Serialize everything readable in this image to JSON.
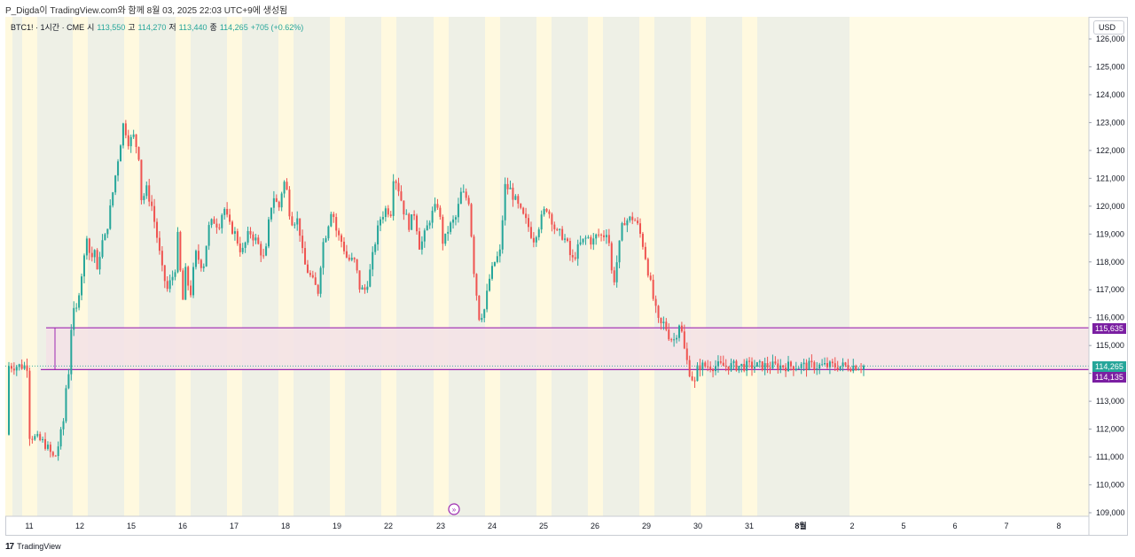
{
  "header": {
    "publish_line": "P_Digda이 TradingView.com와 함께 8월 03, 2025 22:03 UTC+9에 생성됨"
  },
  "legend": {
    "symbol": "BTC1! · 1시간 · CME",
    "open_label": "시",
    "open": "113,550",
    "high_label": "고",
    "high": "114,270",
    "low_label": "저",
    "low": "113,440",
    "close_label": "종",
    "close": "114,265",
    "change": "+705 (+0.62%)"
  },
  "price_axis": {
    "currency": "USD"
  },
  "price_tags": {
    "zone_top": "115,635",
    "last_price": "114,265",
    "zone_bottom": "114,135"
  },
  "footer": {
    "brand": "TradingView",
    "logo": "17"
  },
  "colors": {
    "up": "#26a69a",
    "down": "#ef5350",
    "band_yellow": "#fff9df",
    "band_gray": "#eef0e6",
    "future": "#fffbe6",
    "zone_line": "#9c27b0",
    "zone_fill": "#f3e2e6",
    "last_price_bg": "#26a69a",
    "zone_tag_bg": "#7b1fa2"
  },
  "chart_data": {
    "type": "candlestick",
    "symbol": "BTC1!",
    "timeframe": "1시간",
    "exchange": "CME",
    "ylim": [
      109000,
      126000
    ],
    "yticks": [
      "109,000",
      "110,000",
      "111,000",
      "112,000",
      "113,000",
      "114,000",
      "115,000",
      "116,000",
      "117,000",
      "118,000",
      "119,000",
      "120,000",
      "121,000",
      "122,000",
      "123,000",
      "124,000",
      "125,000",
      "126,000"
    ],
    "x_ticks": [
      "11",
      "12",
      "15",
      "16",
      "17",
      "18",
      "19",
      "22",
      "23",
      "24",
      "25",
      "26",
      "29",
      "30",
      "31",
      "8월",
      "2",
      "5",
      "6",
      "7",
      "8"
    ],
    "path": [
      [
        0,
        111800
      ],
      [
        0.3,
        111500
      ],
      [
        0.5,
        110900
      ],
      [
        0.6,
        111600
      ],
      [
        0.7,
        112500
      ],
      [
        0.75,
        114300
      ],
      [
        0.8,
        113900
      ],
      [
        0.85,
        116800
      ],
      [
        0.9,
        115800
      ],
      [
        1.0,
        117200
      ],
      [
        1.1,
        118300
      ],
      [
        1.15,
        119300
      ],
      [
        1.2,
        118000
      ],
      [
        1.3,
        118500
      ],
      [
        1.35,
        117300
      ],
      [
        1.4,
        118600
      ],
      [
        1.5,
        118900
      ],
      [
        1.6,
        120000
      ],
      [
        1.75,
        121800
      ],
      [
        1.85,
        123000
      ],
      [
        1.95,
        122300
      ],
      [
        2.05,
        122500
      ],
      [
        2.15,
        121800
      ],
      [
        2.2,
        120200
      ],
      [
        2.3,
        120600
      ],
      [
        2.4,
        120000
      ],
      [
        2.5,
        118900
      ],
      [
        2.6,
        117700
      ],
      [
        2.7,
        117000
      ],
      [
        2.85,
        117700
      ],
      [
        2.9,
        119000
      ],
      [
        3.0,
        116500
      ],
      [
        3.05,
        117700
      ],
      [
        3.15,
        116800
      ],
      [
        3.25,
        118300
      ],
      [
        3.4,
        117800
      ],
      [
        3.5,
        119200
      ],
      [
        3.6,
        119500
      ],
      [
        3.7,
        119300
      ],
      [
        3.8,
        120000
      ],
      [
        3.9,
        119300
      ],
      [
        4.0,
        119100
      ],
      [
        4.15,
        118300
      ],
      [
        4.3,
        119100
      ],
      [
        4.45,
        118700
      ],
      [
        4.6,
        118000
      ],
      [
        4.7,
        119900
      ],
      [
        4.8,
        120500
      ],
      [
        4.85,
        119700
      ],
      [
        4.95,
        120800
      ],
      [
        5.0,
        120900
      ],
      [
        5.1,
        119500
      ],
      [
        5.25,
        119500
      ],
      [
        5.35,
        118000
      ],
      [
        5.45,
        117600
      ],
      [
        5.55,
        117200
      ],
      [
        5.65,
        116900
      ],
      [
        5.7,
        118500
      ],
      [
        5.8,
        119100
      ],
      [
        5.9,
        120000
      ],
      [
        6.0,
        119000
      ],
      [
        6.1,
        118700
      ],
      [
        6.2,
        118100
      ],
      [
        6.35,
        118000
      ],
      [
        6.45,
        117000
      ],
      [
        6.55,
        117000
      ],
      [
        6.65,
        117700
      ],
      [
        6.75,
        118800
      ],
      [
        6.85,
        119600
      ],
      [
        6.95,
        119900
      ],
      [
        7.05,
        119800
      ],
      [
        7.1,
        121200
      ],
      [
        7.2,
        120600
      ],
      [
        7.3,
        119800
      ],
      [
        7.4,
        119300
      ],
      [
        7.5,
        119800
      ],
      [
        7.6,
        118500
      ],
      [
        7.7,
        119000
      ],
      [
        7.8,
        119600
      ],
      [
        7.95,
        120100
      ],
      [
        8.05,
        118600
      ],
      [
        8.15,
        119200
      ],
      [
        8.3,
        119600
      ],
      [
        8.4,
        120500
      ],
      [
        8.55,
        120200
      ],
      [
        8.65,
        117600
      ],
      [
        8.75,
        116000
      ],
      [
        8.85,
        116300
      ],
      [
        8.95,
        117400
      ],
      [
        9.05,
        118000
      ],
      [
        9.15,
        118300
      ],
      [
        9.25,
        120700
      ],
      [
        9.35,
        120600
      ],
      [
        9.45,
        120200
      ],
      [
        9.55,
        119800
      ],
      [
        9.7,
        119300
      ],
      [
        9.8,
        118800
      ],
      [
        9.95,
        119500
      ],
      [
        10.05,
        120000
      ],
      [
        10.15,
        119600
      ],
      [
        10.25,
        119000
      ],
      [
        10.35,
        119000
      ],
      [
        10.45,
        118700
      ],
      [
        10.55,
        118000
      ],
      [
        10.7,
        118600
      ],
      [
        10.85,
        118900
      ],
      [
        10.95,
        118700
      ],
      [
        11.05,
        119000
      ],
      [
        11.15,
        118900
      ],
      [
        11.25,
        119200
      ],
      [
        11.35,
        117100
      ],
      [
        11.45,
        118300
      ],
      [
        11.55,
        119500
      ],
      [
        11.65,
        119500
      ],
      [
        11.75,
        119600
      ],
      [
        11.85,
        119200
      ],
      [
        11.95,
        118500
      ],
      [
        12.05,
        117500
      ],
      [
        12.15,
        116500
      ],
      [
        12.25,
        115700
      ],
      [
        12.35,
        115800
      ],
      [
        12.45,
        115300
      ],
      [
        12.55,
        115200
      ],
      [
        12.65,
        115900
      ],
      [
        12.75,
        114700
      ],
      [
        12.85,
        114000
      ],
      [
        12.95,
        113600
      ],
      [
        13.0,
        114265
      ]
    ]
  }
}
